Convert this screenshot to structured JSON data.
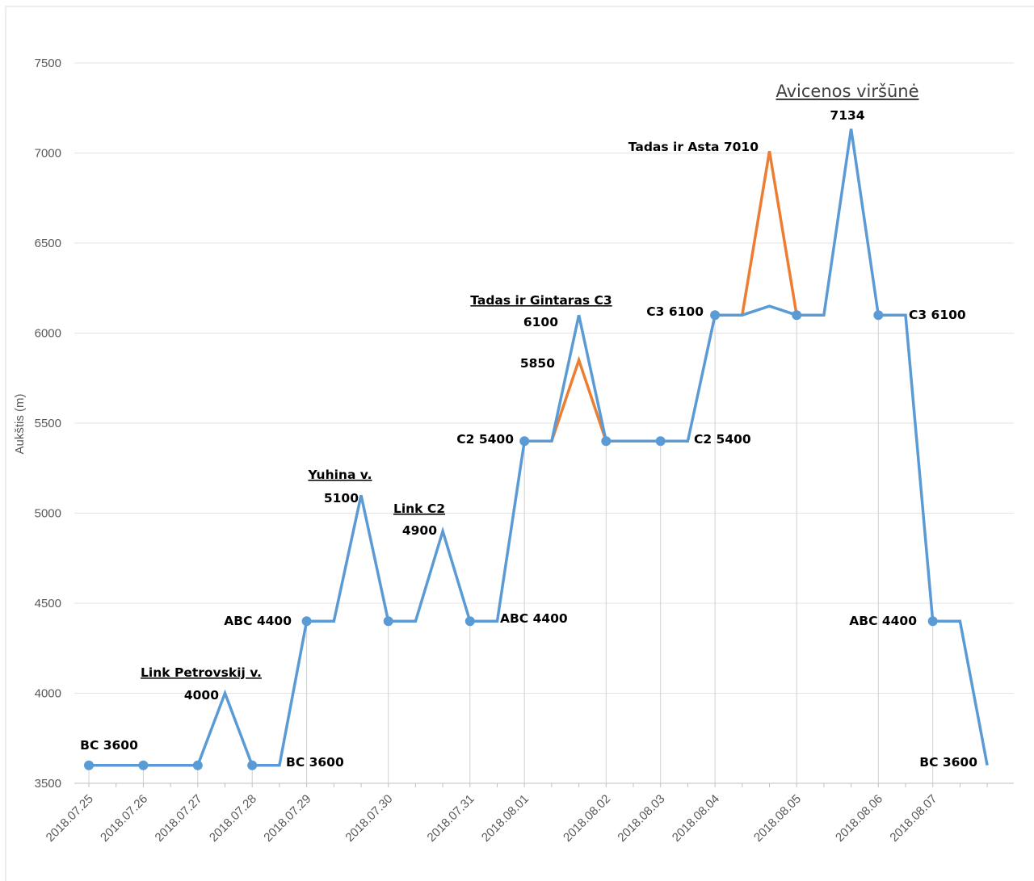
{
  "chart_data": {
    "type": "line",
    "title": "",
    "ylabel": "Aukštis (m)",
    "xlabel": "",
    "ylim": [
      3500,
      7500
    ],
    "yticks": [
      3500,
      4000,
      4500,
      5000,
      5500,
      6000,
      6500,
      7000,
      7500
    ],
    "grid": true,
    "legend": "none",
    "categories": [
      "2018.07.25",
      "2018.07.26",
      "2018.07.27",
      "2018.07.28",
      "2018.07.29",
      "2018.07.30",
      "2018.07.31",
      "2018.08.01",
      "2018.08.02",
      "2018.08.03",
      "2018.08.04",
      "2018.08.05",
      "2018.08.06",
      "2018.08.07"
    ],
    "series": [
      {
        "color": "#5B9BD5",
        "points": [
          {
            "x": 0,
            "y": 3600,
            "marker": true
          },
          {
            "x": 1,
            "y": 3600,
            "marker": true
          },
          {
            "x": 2,
            "y": 3600,
            "marker": true
          },
          {
            "x": 2.5,
            "y": 4000
          },
          {
            "x": 3,
            "y": 3600,
            "marker": true
          },
          {
            "x": 3.5,
            "y": 3600
          },
          {
            "x": 4,
            "y": 4400,
            "marker": true
          },
          {
            "x": 4.5,
            "y": 4400
          },
          {
            "x": 5,
            "y": 5100
          },
          {
            "x": 5.5,
            "y": 4400,
            "marker": true
          },
          {
            "x": 6,
            "y": 4400
          },
          {
            "x": 6.5,
            "y": 4900
          },
          {
            "x": 7,
            "y": 4400,
            "marker": true
          },
          {
            "x": 7.5,
            "y": 4400
          },
          {
            "x": 8,
            "y": 5400,
            "marker": true
          },
          {
            "x": 8.5,
            "y": 5400
          },
          {
            "x": 9,
            "y": 6100
          },
          {
            "x": 9.5,
            "y": 5400,
            "marker": true
          },
          {
            "x": 10,
            "y": 5400
          },
          {
            "x": 10.5,
            "y": 5400,
            "marker": true
          },
          {
            "x": 11,
            "y": 5400
          },
          {
            "x": 11.5,
            "y": 6100,
            "marker": true
          },
          {
            "x": 12,
            "y": 6100
          },
          {
            "x": 12.5,
            "y": 6150
          },
          {
            "x": 13,
            "y": 6100,
            "marker": true
          },
          {
            "x": 13.5,
            "y": 6100
          },
          {
            "x": 14,
            "y": 7134
          },
          {
            "x": 14.5,
            "y": 6100,
            "marker": true
          },
          {
            "x": 15,
            "y": 6100
          },
          {
            "x": 15.5,
            "y": 4400,
            "marker": true
          },
          {
            "x": 16,
            "y": 4400
          },
          {
            "x": 16.5,
            "y": 3600
          }
        ]
      },
      {
        "color": "#ED7D31",
        "segments": [
          [
            {
              "x": 8.5,
              "y": 5400
            },
            {
              "x": 9,
              "y": 5850
            },
            {
              "x": 9.5,
              "y": 5400
            }
          ],
          [
            {
              "x": 12,
              "y": 6100
            },
            {
              "x": 12.5,
              "y": 7010
            },
            {
              "x": 13,
              "y": 6100
            }
          ]
        ]
      }
    ],
    "annotations": [
      {
        "text": "BC 3600",
        "x": 0,
        "y": 3600,
        "anchor": "above"
      },
      {
        "text": "Link Petrovskij v.",
        "underline": true,
        "x": 2.5,
        "y": 4000,
        "anchor": "title"
      },
      {
        "text": "4000",
        "x": 2.5,
        "y": 4000,
        "anchor": "left"
      },
      {
        "text": "BC 3600",
        "x": 3.5,
        "y": 3600,
        "anchor": "right"
      },
      {
        "text": "ABC 4400",
        "x": 4,
        "y": 4400,
        "anchor": "left"
      },
      {
        "text": "Yuhina  v.",
        "underline": true,
        "x": 5,
        "y": 5100,
        "anchor": "title"
      },
      {
        "text": "5100",
        "x": 5,
        "y": 5100,
        "anchor": "left"
      },
      {
        "text": "Link C2",
        "underline": true,
        "x": 6.5,
        "y": 4900,
        "anchor": "title"
      },
      {
        "text": "4900",
        "x": 6.5,
        "y": 4900,
        "anchor": "left"
      },
      {
        "text": "ABC 4400",
        "x": 7.5,
        "y": 4400,
        "anchor": "right"
      },
      {
        "text": "C2 5400",
        "x": 8,
        "y": 5400,
        "anchor": "left"
      },
      {
        "text": "Tadas ir Gintaras C3",
        "underline": true,
        "x": 9,
        "y": 6100,
        "anchor": "title"
      },
      {
        "text": "6100",
        "x": 9,
        "y": 6100,
        "anchor": "left"
      },
      {
        "text": "5850",
        "x": 9,
        "y": 5850,
        "anchor": "left"
      },
      {
        "text": "C2 5400",
        "x": 11,
        "y": 5400,
        "anchor": "right"
      },
      {
        "text": "C3 6100",
        "x": 11.5,
        "y": 6100,
        "anchor": "left"
      },
      {
        "text": "Tadas ir Asta 7010",
        "x": 12.5,
        "y": 7010,
        "anchor": "left"
      },
      {
        "text": "Avicenos viršūnė",
        "underline": true,
        "x": 14,
        "y": 7134,
        "anchor": "title-big"
      },
      {
        "text": "7134",
        "x": 14,
        "y": 7134,
        "anchor": "above"
      },
      {
        "text": "C3 6100",
        "x": 15,
        "y": 6100,
        "anchor": "right"
      },
      {
        "text": "ABC 4400",
        "x": 15.5,
        "y": 4400,
        "anchor": "left"
      },
      {
        "text": "BC 3600",
        "x": 16.5,
        "y": 3600,
        "anchor": "left"
      }
    ]
  }
}
